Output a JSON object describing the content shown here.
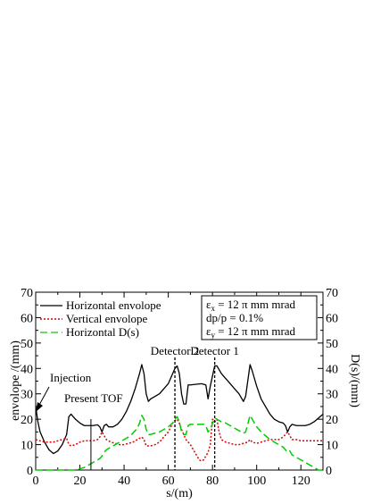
{
  "chart_data": {
    "type": "line",
    "xlabel": "s/(m)",
    "ylabel": "envolope /(mm)",
    "y2label": "D(s)/(mm)",
    "xlim": [
      0,
      130
    ],
    "ylim": [
      0,
      70
    ],
    "y2lim": [
      0,
      70
    ],
    "x_ticks": [
      0,
      20,
      40,
      60,
      80,
      100,
      120
    ],
    "y_ticks": [
      0,
      10,
      20,
      30,
      40,
      50,
      60,
      70
    ],
    "grid": false,
    "legend_position": "top-left",
    "series": [
      {
        "name": "Horizontal envolope",
        "color": "#000000",
        "dash": "solid",
        "points": [
          [
            0,
            25
          ],
          [
            1,
            19
          ],
          [
            2,
            15
          ],
          [
            4,
            11
          ],
          [
            6,
            8
          ],
          [
            8,
            6.5
          ],
          [
            10,
            7.5
          ],
          [
            12,
            10
          ],
          [
            14,
            14
          ],
          [
            15,
            21
          ],
          [
            16,
            22
          ],
          [
            18,
            20
          ],
          [
            20,
            18.5
          ],
          [
            22,
            17.5
          ],
          [
            24,
            17.5
          ],
          [
            26,
            17.5
          ],
          [
            28,
            17.8
          ],
          [
            29,
            17
          ],
          [
            30,
            15
          ],
          [
            31,
            17.5
          ],
          [
            32,
            18
          ],
          [
            33,
            17
          ],
          [
            35,
            17
          ],
          [
            37,
            18
          ],
          [
            39,
            20
          ],
          [
            41,
            23
          ],
          [
            43,
            27
          ],
          [
            45,
            32
          ],
          [
            47,
            38
          ],
          [
            48,
            41.5
          ],
          [
            49,
            38
          ],
          [
            50,
            30
          ],
          [
            51,
            27
          ],
          [
            52,
            28
          ],
          [
            54,
            29
          ],
          [
            56,
            30
          ],
          [
            58,
            32
          ],
          [
            60,
            34
          ],
          [
            62,
            38
          ],
          [
            63,
            40
          ],
          [
            64,
            41
          ],
          [
            65,
            38
          ],
          [
            66,
            30
          ],
          [
            67,
            26
          ],
          [
            68,
            26
          ],
          [
            69,
            33.5
          ],
          [
            70,
            33.5
          ],
          [
            75,
            34
          ],
          [
            77,
            33.5
          ],
          [
            78,
            28
          ],
          [
            79,
            33
          ],
          [
            81,
            41
          ],
          [
            82,
            41
          ],
          [
            84,
            38
          ],
          [
            86,
            36
          ],
          [
            88,
            34
          ],
          [
            90,
            32
          ],
          [
            92,
            30
          ],
          [
            94,
            27
          ],
          [
            95,
            29
          ],
          [
            97,
            41.5
          ],
          [
            98,
            39
          ],
          [
            100,
            33
          ],
          [
            102,
            28
          ],
          [
            104,
            25
          ],
          [
            106,
            22
          ],
          [
            108,
            20
          ],
          [
            110,
            19
          ],
          [
            112,
            18.5
          ],
          [
            113,
            17.5
          ],
          [
            114,
            15
          ],
          [
            115,
            17
          ],
          [
            116,
            18
          ],
          [
            118,
            17.5
          ],
          [
            120,
            17.5
          ],
          [
            122,
            17.5
          ],
          [
            124,
            18
          ],
          [
            126,
            19
          ],
          [
            128,
            20.5
          ],
          [
            130,
            22
          ]
        ]
      },
      {
        "name": "Vertical envolope",
        "color": "#e00000",
        "dash": "dotted",
        "points": [
          [
            0,
            12
          ],
          [
            2,
            11.5
          ],
          [
            4,
            11
          ],
          [
            6,
            11
          ],
          [
            8,
            11
          ],
          [
            10,
            11.5
          ],
          [
            12,
            12
          ],
          [
            14,
            12.5
          ],
          [
            15,
            10
          ],
          [
            16,
            9.5
          ],
          [
            18,
            10
          ],
          [
            20,
            11
          ],
          [
            22,
            11.5
          ],
          [
            24,
            11.5
          ],
          [
            26,
            11.5
          ],
          [
            28,
            12
          ],
          [
            29,
            13
          ],
          [
            30,
            15
          ],
          [
            31,
            13.5
          ],
          [
            32,
            12
          ],
          [
            34,
            11
          ],
          [
            36,
            10.5
          ],
          [
            38,
            10
          ],
          [
            40,
            10
          ],
          [
            42,
            10.5
          ],
          [
            44,
            11
          ],
          [
            46,
            12
          ],
          [
            48,
            13
          ],
          [
            49,
            12
          ],
          [
            50,
            9.5
          ],
          [
            52,
            9.5
          ],
          [
            54,
            10
          ],
          [
            56,
            11
          ],
          [
            58,
            13
          ],
          [
            60,
            15
          ],
          [
            62,
            18.5
          ],
          [
            63,
            19.5
          ],
          [
            64,
            20
          ],
          [
            65,
            18.5
          ],
          [
            66,
            16
          ],
          [
            68,
            12
          ],
          [
            70,
            10
          ],
          [
            72,
            7
          ],
          [
            74,
            4
          ],
          [
            75,
            3.5
          ],
          [
            76,
            4
          ],
          [
            78,
            7
          ],
          [
            79,
            10
          ],
          [
            80,
            20
          ],
          [
            81,
            19
          ],
          [
            82,
            20
          ],
          [
            83,
            15
          ],
          [
            84,
            12
          ],
          [
            86,
            11
          ],
          [
            88,
            10.5
          ],
          [
            90,
            10
          ],
          [
            92,
            10
          ],
          [
            94,
            10.5
          ],
          [
            96,
            11
          ],
          [
            97,
            12
          ],
          [
            98,
            11
          ],
          [
            100,
            10.5
          ],
          [
            102,
            11
          ],
          [
            104,
            11.5
          ],
          [
            106,
            12
          ],
          [
            108,
            12
          ],
          [
            110,
            12
          ],
          [
            112,
            13
          ],
          [
            113,
            14
          ],
          [
            114,
            15
          ],
          [
            115,
            13.5
          ],
          [
            116,
            12
          ],
          [
            118,
            12
          ],
          [
            120,
            11.5
          ],
          [
            122,
            11.5
          ],
          [
            124,
            11.5
          ],
          [
            126,
            11.5
          ],
          [
            128,
            11.5
          ],
          [
            130,
            11.5
          ]
        ]
      },
      {
        "name": "Horizontal D(s)",
        "color": "#00cc00",
        "dash": "dashed",
        "points": [
          [
            0,
            0
          ],
          [
            16,
            0
          ],
          [
            18,
            0
          ],
          [
            20,
            0.5
          ],
          [
            22,
            1
          ],
          [
            24,
            2
          ],
          [
            26,
            3
          ],
          [
            28,
            4
          ],
          [
            29,
            4.5
          ],
          [
            30,
            5.5
          ],
          [
            31,
            7
          ],
          [
            32,
            8
          ],
          [
            34,
            9
          ],
          [
            36,
            10
          ],
          [
            38,
            11
          ],
          [
            40,
            12
          ],
          [
            42,
            13
          ],
          [
            44,
            14.5
          ],
          [
            46,
            16.5
          ],
          [
            47,
            18.5
          ],
          [
            48,
            21.5
          ],
          [
            49,
            20
          ],
          [
            50,
            16
          ],
          [
            51,
            14
          ],
          [
            52,
            14
          ],
          [
            54,
            14.5
          ],
          [
            56,
            15
          ],
          [
            58,
            16
          ],
          [
            60,
            17
          ],
          [
            62,
            18.5
          ],
          [
            63,
            20
          ],
          [
            64,
            21
          ],
          [
            65,
            19
          ],
          [
            66,
            15
          ],
          [
            67,
            14
          ],
          [
            68,
            14
          ],
          [
            69,
            17.5
          ],
          [
            70,
            18
          ],
          [
            72,
            18
          ],
          [
            74,
            18
          ],
          [
            76,
            18
          ],
          [
            77,
            17.5
          ],
          [
            78,
            15
          ],
          [
            79,
            16
          ],
          [
            81,
            20.5
          ],
          [
            82,
            20
          ],
          [
            84,
            19
          ],
          [
            86,
            18.5
          ],
          [
            88,
            17.5
          ],
          [
            90,
            16.5
          ],
          [
            92,
            15.5
          ],
          [
            94,
            14.5
          ],
          [
            95,
            15
          ],
          [
            97,
            21.5
          ],
          [
            98,
            20
          ],
          [
            100,
            17
          ],
          [
            102,
            15
          ],
          [
            104,
            13.5
          ],
          [
            106,
            12
          ],
          [
            108,
            11
          ],
          [
            110,
            10
          ],
          [
            112,
            9
          ],
          [
            113,
            8
          ],
          [
            114,
            7
          ],
          [
            115,
            7.5
          ],
          [
            116,
            6
          ],
          [
            118,
            5
          ],
          [
            120,
            4
          ],
          [
            122,
            3
          ],
          [
            124,
            2
          ],
          [
            126,
            1
          ],
          [
            128,
            0
          ],
          [
            130,
            0
          ]
        ]
      }
    ],
    "markers": [
      {
        "label": "Detector 2",
        "x": 63
      },
      {
        "label": "Detector 1",
        "x": 81
      }
    ],
    "annotations": [
      {
        "label": "Injection"
      },
      {
        "label": "Present TOF",
        "x": 25
      }
    ],
    "parameters_box": {
      "line1": "ε",
      "line1_sub": "x",
      "line1_rest": " = 12 π mm mrad",
      "line2": "dp/p = 0.1%",
      "line3": "ε",
      "line3_sub": "y",
      "line3_rest": " = 12 π mm mrad"
    }
  }
}
